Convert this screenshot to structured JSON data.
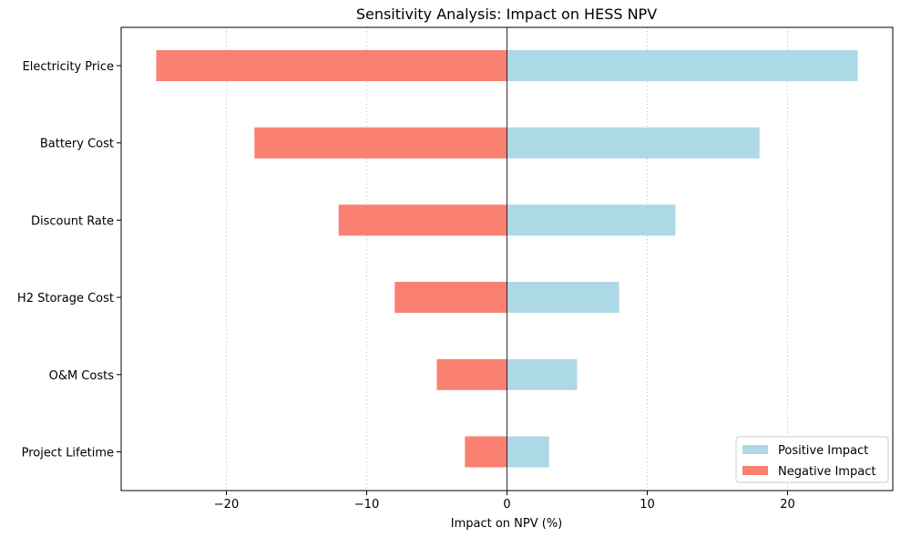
{
  "chart_data": {
    "type": "bar",
    "orientation": "horizontal",
    "title": "Sensitivity Analysis: Impact on HESS NPV",
    "xlabel": "Impact on NPV (%)",
    "ylabel": "",
    "categories": [
      "Electricity Price",
      "Battery Cost",
      "Discount Rate",
      "H2 Storage Cost",
      "O&M Costs",
      "Project Lifetime"
    ],
    "series": [
      {
        "name": "Positive Impact",
        "color": "#add8e6",
        "values": [
          25,
          18,
          12,
          8,
          5,
          3
        ]
      },
      {
        "name": "Negative Impact",
        "color": "#fa8072",
        "values": [
          -25,
          -18,
          -12,
          -8,
          -5,
          -3
        ]
      }
    ],
    "xlim": [
      -27.5,
      27.5
    ],
    "xticks": [
      -20,
      -10,
      0,
      10,
      20
    ],
    "xtick_labels": [
      "−20",
      "−10",
      "0",
      "10",
      "20"
    ],
    "grid": "x-axis, dotted",
    "zero_line": true,
    "legend_position": "lower-right"
  }
}
